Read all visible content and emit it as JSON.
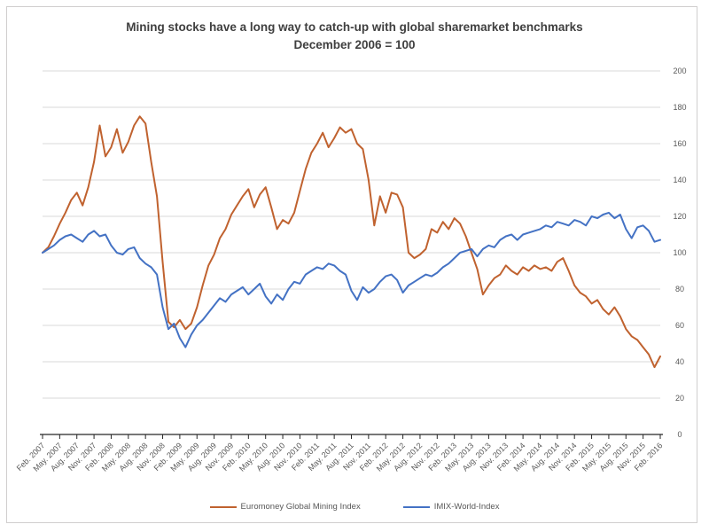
{
  "colors": {
    "mining_line": "#C0622F",
    "world_line": "#4472C4",
    "gridline": "#D9D9D9",
    "axis": "#262626",
    "tick_label": "#595959",
    "title_text": "#3F3F3F",
    "frame_border": "#D0CECE",
    "background": "#FFFFFF"
  },
  "chart_data": {
    "type": "line",
    "title": "Mining stocks have a long way to catch-up with global sharemarket benchmarks",
    "subtitle": "December 2006 = 100",
    "ylim": [
      0,
      200
    ],
    "y_ticks": [
      0,
      20,
      40,
      60,
      80,
      100,
      120,
      140,
      160,
      180,
      200
    ],
    "grid": "horizontal",
    "legend_position": "bottom",
    "x_unit": "month",
    "x_tick_labels": [
      "Feb. 2007",
      "May. 2007",
      "Aug. 2007",
      "Nov. 2007",
      "Feb. 2008",
      "May. 2008",
      "Aug. 2008",
      "Nov. 2008",
      "Feb. 2009",
      "May. 2009",
      "Aug. 2009",
      "Nov. 2009",
      "Feb. 2010",
      "May. 2010",
      "Aug. 2010",
      "Nov. 2010",
      "Feb. 2011",
      "May. 2011",
      "Aug. 2011",
      "Nov. 2011",
      "Feb. 2012",
      "May. 2012",
      "Aug. 2012",
      "Nov. 2012",
      "Feb. 2013",
      "May. 2013",
      "Aug. 2013",
      "Nov. 2013",
      "Feb. 2014",
      "May. 2014",
      "Aug. 2014",
      "Nov. 2014",
      "Feb. 2015",
      "May. 2015",
      "Aug. 2015",
      "Nov. 2015",
      "Feb. 2016"
    ],
    "series": [
      {
        "name": "Euromoney Global Mining Index",
        "color": "#C0622F",
        "values": [
          100,
          103,
          109,
          116,
          122,
          129,
          133,
          126,
          136,
          150,
          170,
          153,
          158,
          168,
          155,
          161,
          170,
          175,
          171,
          150,
          131,
          95,
          62,
          59,
          63,
          58,
          61,
          70,
          82,
          93,
          99,
          108,
          113,
          121,
          126,
          131,
          135,
          125,
          132,
          136,
          125,
          113,
          118,
          116,
          122,
          134,
          146,
          155,
          160,
          166,
          158,
          163,
          169,
          166,
          168,
          160,
          157,
          140,
          115,
          131,
          122,
          133,
          132,
          125,
          100,
          97,
          99,
          102,
          113,
          111,
          117,
          113,
          119,
          116,
          109,
          100,
          91,
          77,
          82,
          86,
          88,
          93,
          90,
          88,
          92,
          90,
          93,
          91,
          92,
          90,
          95,
          97,
          90,
          82,
          78,
          76,
          72,
          74,
          69,
          66,
          70,
          65,
          58,
          54,
          52,
          48,
          44,
          37,
          43
        ]
      },
      {
        "name": "IMIX-World-Index",
        "color": "#4472C4",
        "values": [
          100,
          102,
          104,
          107,
          109,
          110,
          108,
          106,
          110,
          112,
          109,
          110,
          104,
          100,
          99,
          102,
          103,
          97,
          94,
          92,
          88,
          70,
          58,
          61,
          53,
          48,
          55,
          60,
          63,
          67,
          71,
          75,
          73,
          77,
          79,
          81,
          77,
          80,
          83,
          76,
          72,
          77,
          74,
          80,
          84,
          83,
          88,
          90,
          92,
          91,
          94,
          93,
          90,
          88,
          79,
          74,
          81,
          78,
          80,
          84,
          87,
          88,
          85,
          78,
          82,
          84,
          86,
          88,
          87,
          89,
          92,
          94,
          97,
          100,
          101,
          102,
          98,
          102,
          104,
          103,
          107,
          109,
          110,
          107,
          110,
          111,
          112,
          113,
          115,
          114,
          117,
          116,
          115,
          118,
          117,
          115,
          120,
          119,
          121,
          122,
          119,
          121,
          113,
          108,
          114,
          115,
          112,
          106,
          107
        ]
      }
    ]
  },
  "legend": {
    "items": [
      {
        "label": "Euromoney Global Mining Index"
      },
      {
        "label": "IMIX-World-Index"
      }
    ]
  }
}
